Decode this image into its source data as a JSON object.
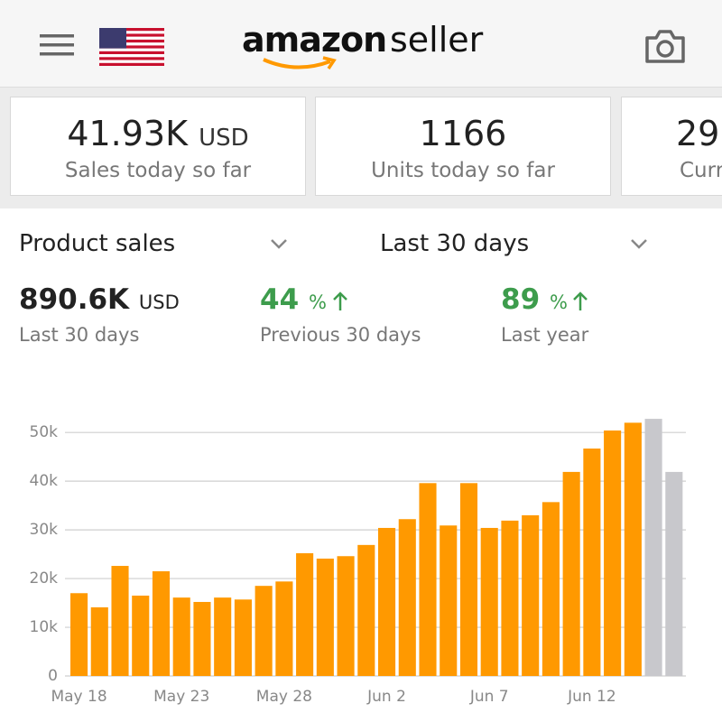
{
  "header": {
    "logo_main": "amazon",
    "logo_sub": "seller"
  },
  "cards": [
    {
      "value": "41.93K",
      "unit": "USD",
      "label": "Sales today so far"
    },
    {
      "value": "1166",
      "label": "Units today so far"
    },
    {
      "value": "29",
      "label": "Curr"
    }
  ],
  "selectors": {
    "metric": "Product sales",
    "period": "Last 30 days"
  },
  "summary": [
    {
      "value": "890.6K",
      "unit": "USD",
      "label": "Last 30 days"
    },
    {
      "value": "44",
      "unit": "%",
      "label": "Previous 30 days"
    },
    {
      "value": "89",
      "unit": "%",
      "label": "Last year"
    }
  ],
  "chart_data": {
    "type": "bar",
    "categories": [
      "May 18",
      null,
      null,
      null,
      null,
      "May 23",
      null,
      null,
      null,
      null,
      "May 28",
      null,
      null,
      null,
      null,
      "Jun 2",
      null,
      null,
      null,
      null,
      "Jun 7",
      null,
      null,
      null,
      null,
      "Jun 12",
      null,
      null,
      null,
      null
    ],
    "values": [
      17000,
      14100,
      22600,
      16500,
      21500,
      16100,
      15200,
      16100,
      15700,
      18500,
      19400,
      25200,
      24100,
      24600,
      26900,
      30400,
      32200,
      39600,
      30900,
      39600,
      30400,
      31900,
      33000,
      35700,
      41900,
      46700,
      50400,
      52000,
      52800,
      41900
    ],
    "colors": [
      "#ff9900",
      "#ff9900",
      "#ff9900",
      "#ff9900",
      "#ff9900",
      "#ff9900",
      "#ff9900",
      "#ff9900",
      "#ff9900",
      "#ff9900",
      "#ff9900",
      "#ff9900",
      "#ff9900",
      "#ff9900",
      "#ff9900",
      "#ff9900",
      "#ff9900",
      "#ff9900",
      "#ff9900",
      "#ff9900",
      "#ff9900",
      "#ff9900",
      "#ff9900",
      "#ff9900",
      "#ff9900",
      "#ff9900",
      "#ff9900",
      "#ff9900",
      "#c8c8cc",
      "#c8c8cc"
    ],
    "ylim": [
      0,
      53000
    ],
    "yticks": [
      0,
      {
        "value": 10000,
        "label": "10k"
      },
      {
        "value": 20000,
        "label": "20k"
      },
      {
        "value": 30000,
        "label": "30k"
      },
      {
        "value": 40000,
        "label": "40k"
      },
      {
        "value": 50000,
        "label": "50k"
      }
    ],
    "grid": true
  }
}
